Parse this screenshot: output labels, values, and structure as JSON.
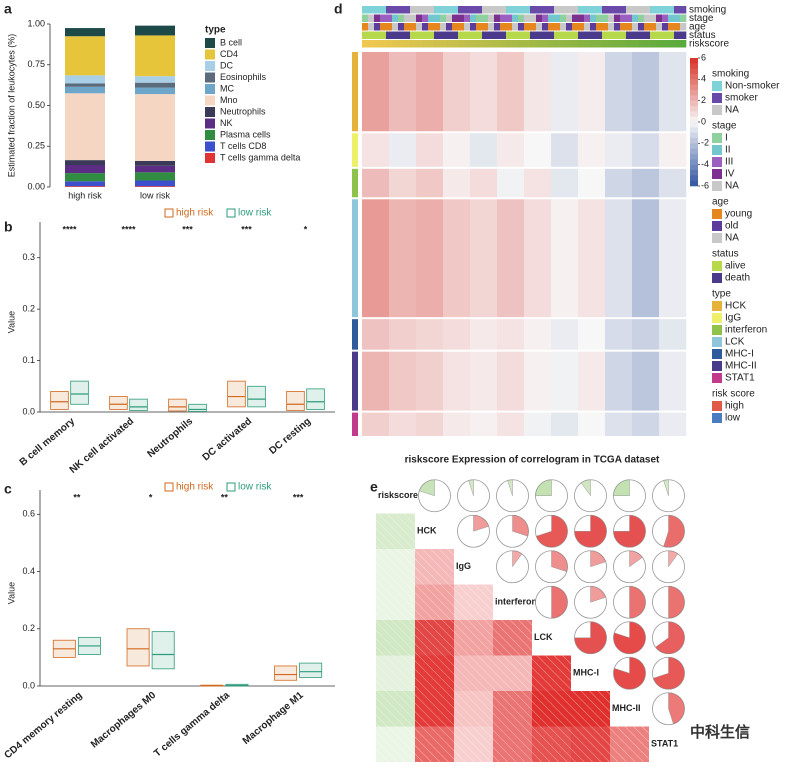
{
  "chart_data": [
    {
      "type": "stacked_bar",
      "panel": "a",
      "ylabel": "Estimated fraction of leukocytes (%)",
      "legend_title": "type",
      "categories": [
        "high risk",
        "low risk"
      ],
      "ylim": [
        0,
        1
      ],
      "yticks": [
        {
          "value": 0,
          "label": "0.00"
        },
        {
          "value": 0.25,
          "label": "0.25"
        },
        {
          "value": 0.5,
          "label": "0.50"
        },
        {
          "value": 0.75,
          "label": "0.75"
        },
        {
          "value": 1,
          "label": "1.00"
        }
      ],
      "series": [
        {
          "name": "B cell",
          "color": "#1d4a48",
          "values": [
            0.05,
            0.06
          ]
        },
        {
          "name": "CD4",
          "color": "#e6c53b",
          "values": [
            0.24,
            0.25
          ]
        },
        {
          "name": "DC",
          "color": "#a9cfe6",
          "values": [
            0.05,
            0.04
          ]
        },
        {
          "name": "Eosinophils",
          "color": "#5b6b7b",
          "values": [
            0.02,
            0.03
          ]
        },
        {
          "name": "MC",
          "color": "#6ea6c9",
          "values": [
            0.04,
            0.04
          ]
        },
        {
          "name": "Mno",
          "color": "#f4d6c3",
          "values": [
            0.41,
            0.41
          ]
        },
        {
          "name": "Neutrophils",
          "color": "#3a3a58",
          "values": [
            0.03,
            0.03
          ]
        },
        {
          "name": "NK",
          "color": "#5c2d84",
          "values": [
            0.05,
            0.04
          ]
        },
        {
          "name": "Plasma cells",
          "color": "#2f8c40",
          "values": [
            0.05,
            0.05
          ]
        },
        {
          "name": "T cells CD8",
          "color": "#3c4fcc",
          "values": [
            0.03,
            0.035
          ]
        },
        {
          "name": "T cells gamma delta",
          "color": "#e03434",
          "values": [
            0.005,
            0.005
          ]
        }
      ]
    },
    {
      "type": "box",
      "panel": "b",
      "ylabel": "Value",
      "categories": [
        "B cell memory",
        "NK cell activated",
        "Neutrophils",
        "DC activated",
        "DC resting"
      ],
      "annotations": [
        "****",
        "****",
        "***",
        "***",
        "*"
      ],
      "ylim": [
        0,
        0.35
      ],
      "yticks": [
        {
          "value": 0,
          "label": "0.0"
        },
        0.1,
        0.2,
        0.3
      ],
      "series": [
        {
          "name": "high risk",
          "color": "#d2691e",
          "q1": [
            0.005,
            0.005,
            0.002,
            0.01,
            0.003
          ],
          "median": [
            0.02,
            0.015,
            0.01,
            0.03,
            0.015
          ],
          "q3": [
            0.04,
            0.03,
            0.025,
            0.06,
            0.04
          ]
        },
        {
          "name": "low risk",
          "color": "#2e9c7c",
          "q1": [
            0.015,
            0.003,
            0.001,
            0.01,
            0.005
          ],
          "median": [
            0.035,
            0.01,
            0.005,
            0.025,
            0.02
          ],
          "q3": [
            0.06,
            0.025,
            0.015,
            0.05,
            0.045
          ]
        }
      ]
    },
    {
      "type": "box",
      "panel": "c",
      "ylabel": "Value",
      "categories": [
        "CD4 memory resting",
        "Macrophages M0",
        "T cells gamma delta",
        "Macrophage M1"
      ],
      "annotations": [
        "**",
        "*",
        "**",
        "***"
      ],
      "ylim": [
        0,
        0.65
      ],
      "yticks": [
        {
          "value": 0,
          "label": "0.0"
        },
        0.2,
        0.4,
        0.6
      ],
      "series": [
        {
          "name": "high risk",
          "color": "#d2691e",
          "q1": [
            0.1,
            0.07,
            0.0,
            0.02
          ],
          "median": [
            0.13,
            0.13,
            0.001,
            0.04
          ],
          "q3": [
            0.16,
            0.2,
            0.003,
            0.07
          ]
        },
        {
          "name": "low risk",
          "color": "#2e9c7c",
          "q1": [
            0.11,
            0.06,
            0.0,
            0.03
          ],
          "median": [
            0.14,
            0.11,
            0.002,
            0.05
          ],
          "q3": [
            0.17,
            0.19,
            0.006,
            0.08
          ]
        }
      ]
    },
    {
      "type": "heatmap",
      "panel": "d",
      "annotation_rows": [
        "smoking",
        "stage",
        "age",
        "status",
        "riskscore"
      ],
      "zlim": [
        -6,
        6
      ],
      "zticks": [
        6,
        4,
        2,
        0,
        -2,
        -4,
        -6
      ],
      "legends": [
        {
          "title": "smoking",
          "items": [
            {
              "name": "Non-smoker",
              "color": "#7fd3d8"
            },
            {
              "name": "smoker",
              "color": "#6a4aa8"
            },
            {
              "name": "NA",
              "color": "#c8c8c8"
            }
          ]
        },
        {
          "title": "stage",
          "items": [
            {
              "name": "I",
              "color": "#8fd19e"
            },
            {
              "name": "II",
              "color": "#72c7cf"
            },
            {
              "name": "III",
              "color": "#9b5fc0"
            },
            {
              "name": "IV",
              "color": "#7b2f8f"
            },
            {
              "name": "NA",
              "color": "#c8c8c8"
            }
          ]
        },
        {
          "title": "age",
          "items": [
            {
              "name": "young",
              "color": "#e6861f"
            },
            {
              "name": "old",
              "color": "#5b3c9c"
            },
            {
              "name": "NA",
              "color": "#c8c8c8"
            }
          ]
        },
        {
          "title": "status",
          "items": [
            {
              "name": "alive",
              "color": "#b5d94a"
            },
            {
              "name": "death",
              "color": "#4b3a8c"
            }
          ]
        },
        {
          "title": "type",
          "items": [
            {
              "name": "HCK",
              "color": "#e6b33a"
            },
            {
              "name": "IgG",
              "color": "#eef06a"
            },
            {
              "name": "interferon",
              "color": "#8fc24a"
            },
            {
              "name": "LCK",
              "color": "#8fc6dc"
            },
            {
              "name": "MHC-I",
              "color": "#2f5a9c"
            },
            {
              "name": "MHC-II",
              "color": "#4a3a8c"
            },
            {
              "name": "STAT1",
              "color": "#c23a8c"
            }
          ]
        },
        {
          "title": "risk score",
          "items": [
            {
              "name": "high",
              "color": "#e05a48"
            },
            {
              "name": "low",
              "color": "#4a7cc0"
            }
          ]
        }
      ],
      "values": [
        [
          2.6,
          1.8,
          2.2,
          1.2,
          0.8,
          1.4,
          0.5,
          -0.4,
          0.3,
          -1.2,
          -1.8,
          -0.7
        ],
        [
          0.6,
          -0.4,
          0.8,
          0.2,
          -0.6,
          0.4,
          0.0,
          -0.8,
          0.2,
          -0.4,
          -1.0,
          0.2
        ],
        [
          1.8,
          1.0,
          1.4,
          0.4,
          0.8,
          -0.2,
          0.6,
          -0.6,
          0.0,
          -1.2,
          -1.8,
          -0.8
        ],
        [
          2.8,
          2.0,
          2.2,
          1.4,
          1.0,
          1.6,
          0.8,
          0.2,
          0.6,
          -0.8,
          -2.0,
          -0.4
        ],
        [
          1.6,
          1.2,
          1.0,
          0.8,
          0.4,
          0.6,
          0.2,
          -0.4,
          0.0,
          -1.0,
          -1.4,
          -0.6
        ],
        [
          2.0,
          1.4,
          1.2,
          0.6,
          0.4,
          0.8,
          0.2,
          -0.2,
          0.4,
          -1.2,
          -1.8,
          -0.4
        ],
        [
          1.2,
          0.8,
          1.0,
          0.4,
          0.2,
          0.6,
          -0.2,
          -0.6,
          0.0,
          -0.8,
          -1.2,
          -0.4
        ]
      ]
    },
    {
      "type": "correlogram",
      "panel": "e",
      "title": "riskscore Expression of correlogram in TCGA dataset",
      "variables": [
        "riskscore",
        "HCK",
        "IgG",
        "interferon",
        "LCK",
        "MHC-I",
        "MHC-II",
        "STAT1"
      ],
      "positive_color": "#e0302e",
      "negative_color": "#8cc46a",
      "matrix": [
        [
          null,
          -0.2,
          -0.05,
          -0.05,
          -0.25,
          -0.1,
          -0.25,
          -0.05
        ],
        [
          -0.2,
          null,
          0.2,
          0.3,
          0.7,
          0.75,
          0.75,
          0.55
        ],
        [
          -0.05,
          0.2,
          null,
          0.1,
          0.3,
          0.2,
          0.15,
          0.1
        ],
        [
          -0.05,
          0.3,
          0.1,
          null,
          0.5,
          0.2,
          0.5,
          0.5
        ],
        [
          -0.25,
          0.7,
          0.3,
          0.5,
          null,
          0.75,
          0.8,
          0.65
        ],
        [
          -0.1,
          0.75,
          0.2,
          0.2,
          0.75,
          null,
          0.8,
          0.7
        ],
        [
          -0.25,
          0.75,
          0.15,
          0.5,
          0.8,
          0.8,
          null,
          0.45
        ],
        [
          -0.05,
          0.55,
          0.1,
          0.5,
          0.65,
          0.7,
          0.45,
          null
        ]
      ]
    }
  ],
  "watermark": "中科生信"
}
